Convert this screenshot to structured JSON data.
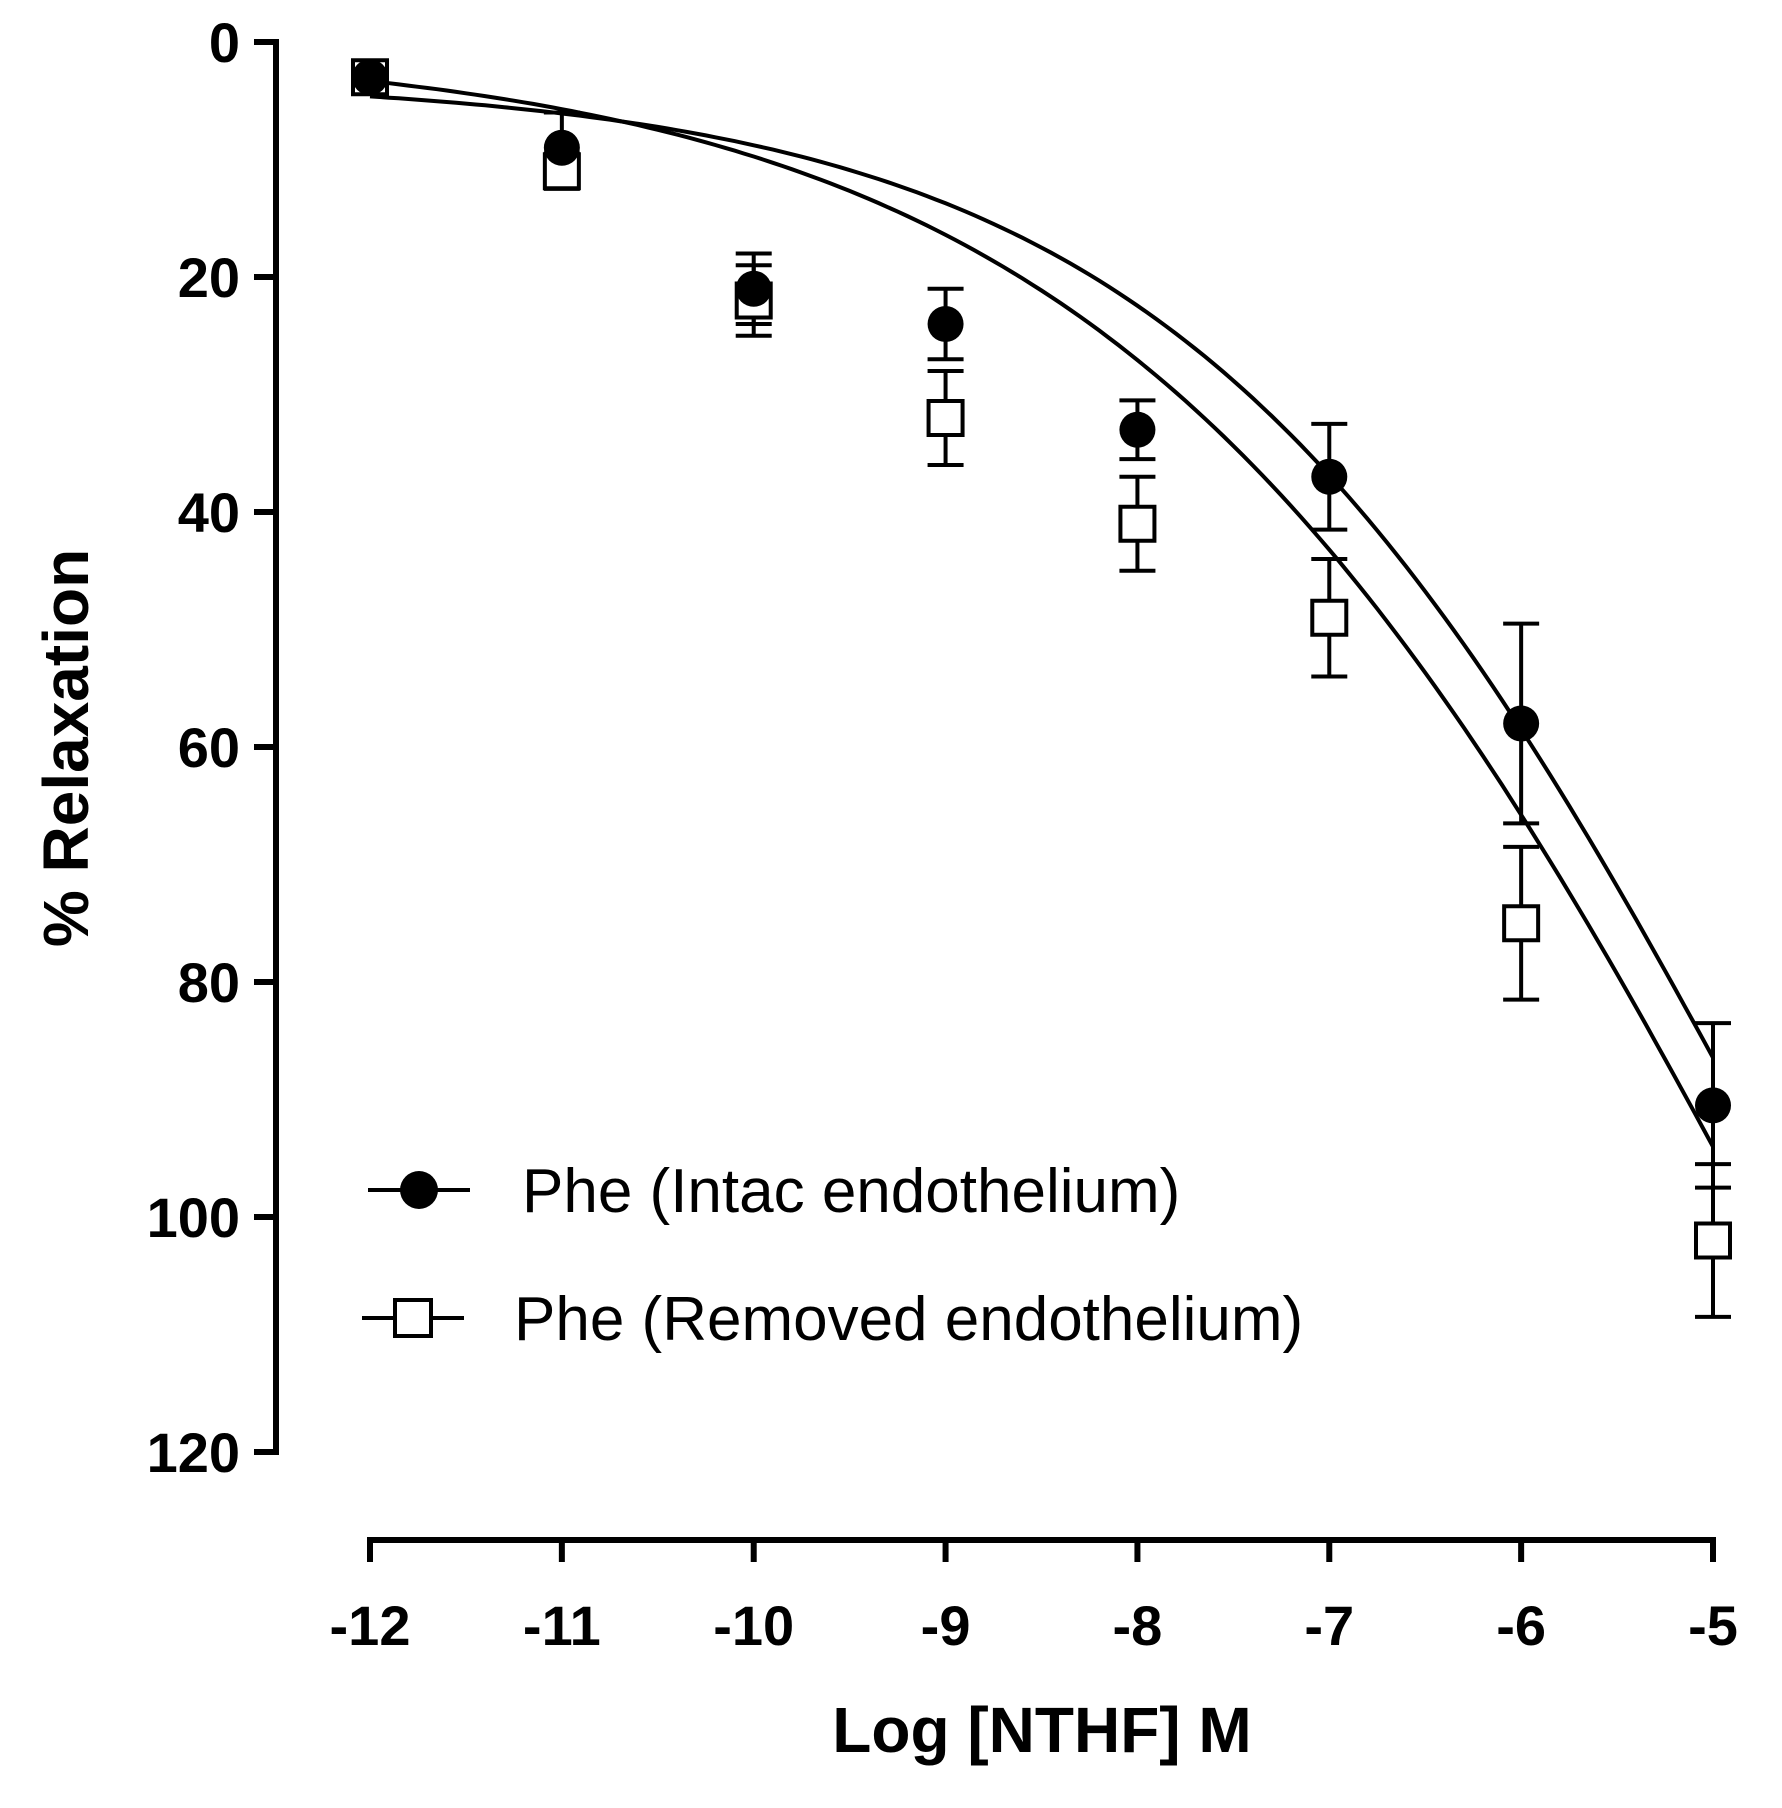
{
  "chart_data": {
    "type": "scatter",
    "xlabel": "Log [NTHF] M",
    "ylabel": "% Relaxation",
    "xlim": [
      -12,
      -5
    ],
    "ylim": [
      0,
      120
    ],
    "y_inverted": true,
    "xticks": [
      -12,
      -11,
      -10,
      -9,
      -8,
      -7,
      -6,
      -5
    ],
    "yticks": [
      0,
      20,
      40,
      60,
      80,
      100,
      120
    ],
    "legend_position": "bottom-left",
    "grid": false,
    "series": [
      {
        "name": "Phe (Intac endothelium)",
        "marker": "filled-circle",
        "x": [
          -12,
          -11,
          -10,
          -9,
          -8,
          -7,
          -6,
          -5
        ],
        "y": [
          3,
          9,
          21,
          24,
          33,
          37,
          58,
          90.5
        ],
        "err": [
          1,
          3,
          3,
          3,
          2.5,
          4.5,
          8.5,
          7
        ],
        "fit": {
          "bottom": 3,
          "top": 191,
          "logEC50": -4.65,
          "hill": 0.28
        }
      },
      {
        "name": "Phe (Removed endothelium)",
        "marker": "open-square",
        "x": [
          -12,
          -11,
          -10,
          -9,
          -8,
          -7,
          -6,
          -5
        ],
        "y": [
          3,
          11,
          22,
          32,
          41,
          49,
          75,
          102
        ],
        "err": [
          1,
          1.5,
          3,
          4,
          4,
          5,
          6.5,
          6.5
        ],
        "fit": {
          "bottom": 0,
          "top": 225,
          "logEC50": -4.4,
          "hill": 0.24
        }
      }
    ]
  },
  "colors": {
    "foreground": "#000000",
    "background": "#ffffff"
  }
}
